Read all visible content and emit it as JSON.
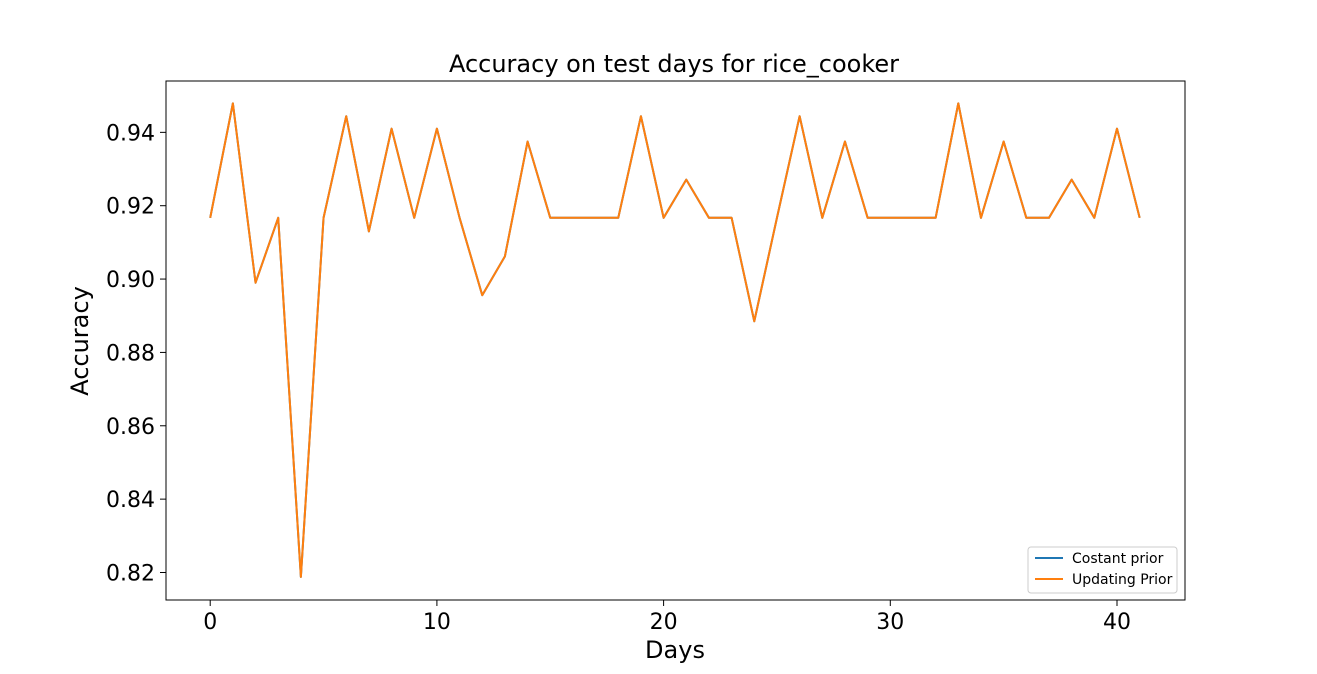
{
  "chart_data": {
    "type": "line",
    "title": "Accuracy on test days for rice_cooker",
    "xlabel": "Days",
    "ylabel": "Accuracy",
    "xlim": [
      -1.95,
      43.0
    ],
    "ylim": [
      0.8125,
      0.954
    ],
    "xticks": [
      0,
      10,
      20,
      30,
      40
    ],
    "xtick_labels": [
      "0",
      "10",
      "20",
      "30",
      "40"
    ],
    "yticks": [
      0.82,
      0.84,
      0.86,
      0.88,
      0.9,
      0.92,
      0.94
    ],
    "ytick_labels": [
      "0.82",
      "0.84",
      "0.86",
      "0.88",
      "0.90",
      "0.92",
      "0.94"
    ],
    "grid": false,
    "legend_position": "lower-right",
    "x": [
      0,
      1,
      2,
      3,
      4,
      5,
      6,
      7,
      8,
      9,
      10,
      11,
      12,
      13,
      14,
      15,
      16,
      17,
      18,
      19,
      20,
      21,
      22,
      23,
      24,
      25,
      26,
      27,
      28,
      29,
      30,
      31,
      32,
      33,
      34,
      35,
      36,
      37,
      38,
      39,
      40,
      41
    ],
    "series": [
      {
        "name": "Costant prior",
        "color": "#1f77b4",
        "values": [
          0.9167,
          0.9479,
          0.899,
          0.9167,
          0.8188,
          0.9167,
          0.9444,
          0.913,
          0.941,
          0.9167,
          0.941,
          0.9167,
          0.8956,
          0.9062,
          0.9375,
          0.9167,
          0.9167,
          0.9167,
          0.9167,
          0.9444,
          0.9167,
          0.9271,
          0.9167,
          0.9167,
          0.8885,
          0.9167,
          0.9444,
          0.9167,
          0.9375,
          0.9167,
          0.9167,
          0.9167,
          0.9167,
          0.9479,
          0.9167,
          0.9375,
          0.9167,
          0.9167,
          0.9271,
          0.9167,
          0.941,
          0.9167
        ]
      },
      {
        "name": "Updating Prior",
        "color": "#ff7f0e",
        "values": [
          0.9167,
          0.9479,
          0.899,
          0.9167,
          0.8188,
          0.9167,
          0.9444,
          0.913,
          0.941,
          0.9167,
          0.941,
          0.9167,
          0.8956,
          0.9062,
          0.9375,
          0.9167,
          0.9167,
          0.9167,
          0.9167,
          0.9444,
          0.9167,
          0.9271,
          0.9167,
          0.9167,
          0.8885,
          0.9167,
          0.9444,
          0.9167,
          0.9375,
          0.9167,
          0.9167,
          0.9167,
          0.9167,
          0.9479,
          0.9167,
          0.9375,
          0.9167,
          0.9167,
          0.9271,
          0.9167,
          0.941,
          0.9167
        ]
      }
    ]
  }
}
